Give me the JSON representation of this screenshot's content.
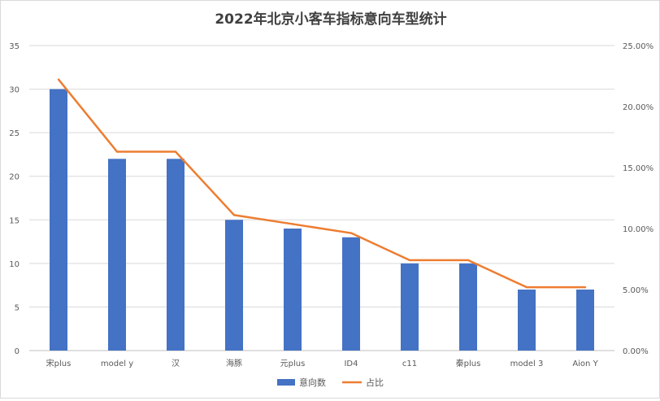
{
  "chart_data": {
    "type": "bar",
    "title": "2022年北京小客车指标意向车型统计",
    "categories": [
      "宋plus",
      "model y",
      "汉",
      "海豚",
      "元plus",
      "ID4",
      "c11",
      "秦plus",
      "model 3",
      "Aion Y"
    ],
    "series": [
      {
        "name": "意向数",
        "type": "bar",
        "axis": "left",
        "color": "#4472C4",
        "values": [
          30,
          22,
          22,
          15,
          14,
          13,
          10,
          10,
          7,
          7
        ]
      },
      {
        "name": "占比",
        "type": "line",
        "axis": "right",
        "color": "#ED7D31",
        "values": [
          0.2222,
          0.163,
          0.163,
          0.1111,
          0.1037,
          0.0963,
          0.0741,
          0.0741,
          0.0519,
          0.0519
        ]
      }
    ],
    "y_left": {
      "min": 0,
      "max": 35,
      "step": 5,
      "ticks": [
        "0",
        "5",
        "10",
        "15",
        "20",
        "25",
        "30",
        "35"
      ]
    },
    "y_right": {
      "min": 0,
      "max": 0.25,
      "step": 0.05,
      "ticks": [
        "0.00%",
        "5.00%",
        "10.00%",
        "15.00%",
        "20.00%",
        "25.00%"
      ]
    },
    "grid": true,
    "legend_position": "bottom"
  }
}
